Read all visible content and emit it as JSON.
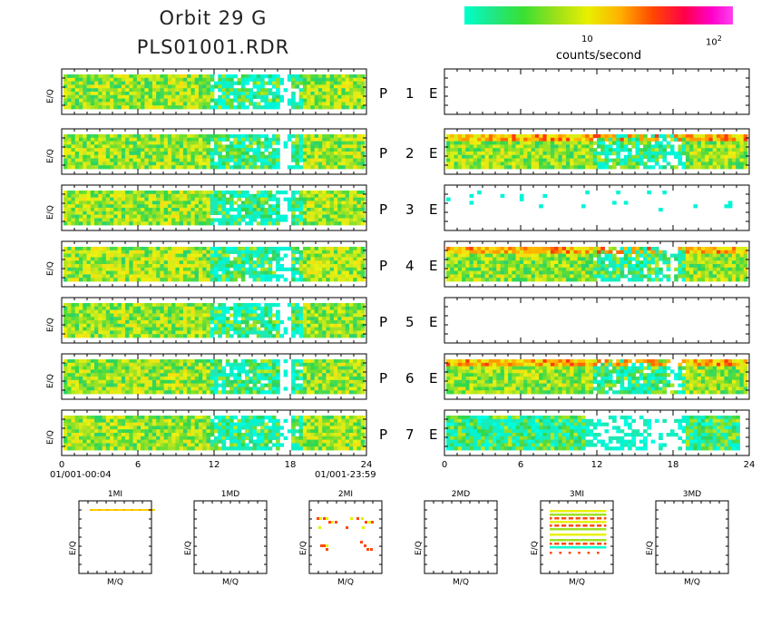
{
  "header": {
    "title_line1": "Orbit 29 G",
    "title_line2": "PLS01001.RDR"
  },
  "colorbar": {
    "label": "counts/second",
    "tick_10": "10",
    "tick_100_base": "10",
    "tick_100_exp": "2",
    "colors": [
      "#00ffcc",
      "#39e032",
      "#e8f000",
      "#ff4800",
      "#ff00c8"
    ]
  },
  "chart_data": {
    "type": "heatmap",
    "panels": [
      {
        "label": "P",
        "index": "1",
        "side": "E",
        "left_has_data": true,
        "right_has_data": false
      },
      {
        "label": "P",
        "index": "2",
        "side": "E",
        "left_has_data": true,
        "right_has_data": true
      },
      {
        "label": "P",
        "index": "3",
        "side": "E",
        "left_has_data": true,
        "right_has_data": "sparse"
      },
      {
        "label": "P",
        "index": "4",
        "side": "E",
        "left_has_data": true,
        "right_has_data": true
      },
      {
        "label": "P",
        "index": "5",
        "side": "E",
        "left_has_data": true,
        "right_has_data": false
      },
      {
        "label": "P",
        "index": "6",
        "side": "E",
        "left_has_data": true,
        "right_has_data": true
      },
      {
        "label": "P",
        "index": "7",
        "side": "E",
        "left_has_data": true,
        "right_has_data": true
      }
    ],
    "ylabel": "E/Q",
    "x_ticks": [
      "0",
      "6",
      "12",
      "18",
      "24"
    ],
    "xlim": [
      0,
      24
    ],
    "time_start": "01/001-00:04",
    "time_end": "01/001-23:59",
    "mq_panels": [
      {
        "title": "1MI",
        "xlabel": "M/Q",
        "ylabel": "E/Q"
      },
      {
        "title": "1MD",
        "xlabel": "M/Q",
        "ylabel": "E/Q"
      },
      {
        "title": "2MI",
        "xlabel": "M/Q",
        "ylabel": "E/Q"
      },
      {
        "title": "2MD",
        "xlabel": "M/Q",
        "ylabel": "E/Q"
      },
      {
        "title": "3MI",
        "xlabel": "M/Q",
        "ylabel": "E/Q"
      },
      {
        "title": "3MD",
        "xlabel": "M/Q",
        "ylabel": "E/Q"
      }
    ]
  }
}
